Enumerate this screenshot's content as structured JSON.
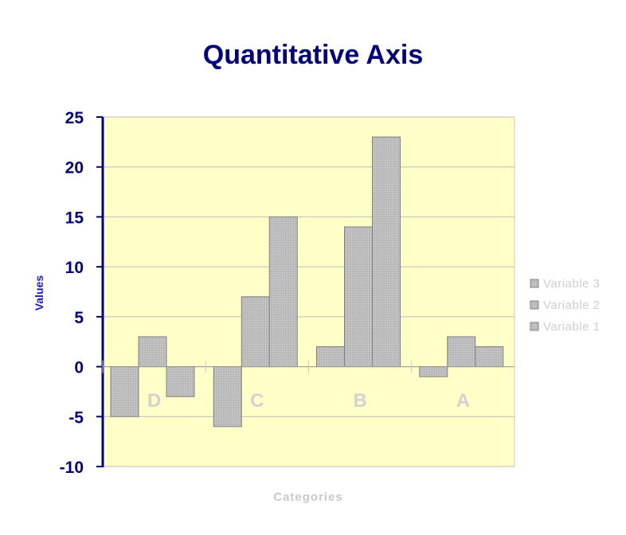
{
  "chart_data": {
    "type": "bar",
    "title": "Quantitative Axis",
    "xlabel": "Categories",
    "ylabel": "Values",
    "categories": [
      "D",
      "C",
      "B",
      "A"
    ],
    "series": [
      {
        "name": "Variable 1",
        "values": [
          -5,
          -6,
          2,
          -1
        ]
      },
      {
        "name": "Variable 2",
        "values": [
          3,
          7,
          14,
          3
        ]
      },
      {
        "name": "Variable 3",
        "values": [
          -3,
          15,
          23,
          2
        ]
      }
    ],
    "ylim": [
      -10,
      25
    ],
    "yticks": [
      "25",
      "20",
      "15",
      "10",
      "5",
      "0",
      "-5",
      "-10"
    ],
    "grid": true,
    "legend_position": "right",
    "legend_order": [
      "Variable 3",
      "Variable 2",
      "Variable 1"
    ],
    "colors": {
      "plot_background": "#ffffc8",
      "bar_fill": "#c0c0c0",
      "bar_stroke": "#808080",
      "axis": "#000080",
      "title": "#000080"
    }
  }
}
